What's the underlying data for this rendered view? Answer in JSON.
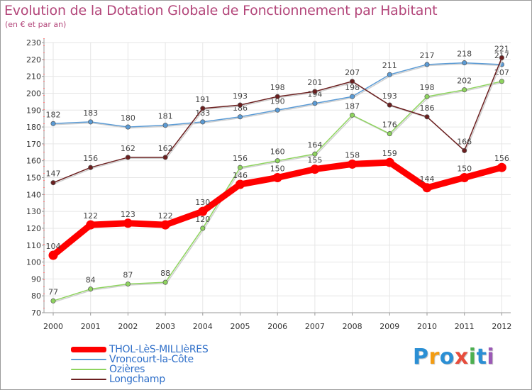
{
  "title": "Evolution de la Dotation Globale de Fonctionnement par Habitant",
  "subtitle": "(en € et par an)",
  "logo": {
    "text": "Proxiti",
    "colors": [
      "#2b8fd4",
      "#f39c12",
      "#2b8fd4",
      "#e74c3c",
      "#4caf50",
      "#2b8fd4",
      "#9b59b6"
    ]
  },
  "colors": {
    "title": "#b3467a",
    "legend_text": "#2f6fc9",
    "axis": "#9a9a9a",
    "grid": "#e6e6e6"
  },
  "chart_data": {
    "type": "line",
    "title": "Evolution de la Dotation Globale de Fonctionnement par Habitant",
    "subtitle": "(en € et par an)",
    "xlabel": "",
    "ylabel": "",
    "x": [
      "2000",
      "2001",
      "2002",
      "2003",
      "2004",
      "2005",
      "2006",
      "2007",
      "2008",
      "2009",
      "2010",
      "2011",
      "2012"
    ],
    "ylim": [
      70,
      230
    ],
    "yticks": [
      70,
      80,
      90,
      100,
      110,
      120,
      130,
      140,
      150,
      160,
      170,
      180,
      190,
      200,
      210,
      220,
      230
    ],
    "grid": true,
    "legend_position": "bottom-left",
    "series": [
      {
        "name": "THOL-LèS-MILLIèRES",
        "color": "#ff0000",
        "width": 9,
        "values": [
          104,
          122,
          123,
          122,
          130,
          146,
          150,
          155,
          158,
          159,
          144,
          150,
          156
        ]
      },
      {
        "name": "Vroncourt-la-Côte",
        "color": "#5b9bd5",
        "width": 1.5,
        "values": [
          182,
          183,
          180,
          181,
          183,
          186,
          190,
          194,
          198,
          211,
          217,
          218,
          217
        ]
      },
      {
        "name": "Ozières",
        "color": "#8ed45e",
        "width": 1.5,
        "values": [
          77,
          84,
          87,
          88,
          120,
          156,
          160,
          164,
          187,
          176,
          198,
          202,
          207
        ]
      },
      {
        "name": "Longchamp",
        "color": "#6b1f1f",
        "width": 1.5,
        "values": [
          147,
          156,
          162,
          162,
          191,
          193,
          198,
          201,
          207,
          193,
          186,
          166,
          221
        ]
      }
    ]
  }
}
